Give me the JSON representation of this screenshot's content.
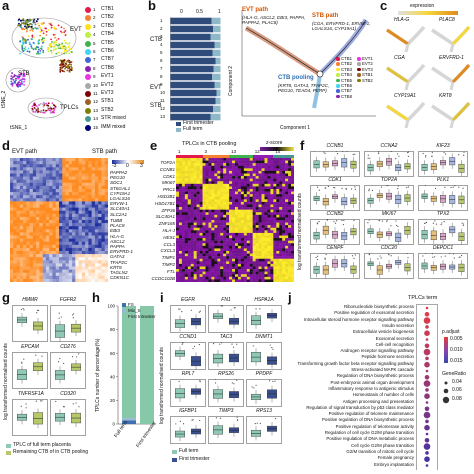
{
  "panels": {
    "a": "a",
    "b": "b",
    "c": "c",
    "d": "d",
    "e": "e",
    "f": "f",
    "g": "g",
    "h": "h",
    "i": "i",
    "j": "j"
  },
  "a": {
    "cluster_labels": [
      "EVT",
      "STB",
      "TPLCs"
    ],
    "xlabel": "tSNE_1",
    "ylabel": "tSNE_2",
    "legend": [
      {
        "id": "1",
        "name": "CTB1",
        "color": "#e6194b"
      },
      {
        "id": "2",
        "name": "CTB2",
        "color": "#f58231"
      },
      {
        "id": "3",
        "name": "CTB3",
        "color": "#ffe119"
      },
      {
        "id": "4",
        "name": "CTB4",
        "color": "#bfef45"
      },
      {
        "id": "5",
        "name": "CTB5",
        "color": "#3cb44b"
      },
      {
        "id": "6",
        "name": "CTB6",
        "color": "#42d4f4"
      },
      {
        "id": "7",
        "name": "CTB7",
        "color": "#4363d8"
      },
      {
        "id": "8",
        "name": "CTB8",
        "color": "#911eb4"
      },
      {
        "id": "9",
        "name": "EVT1",
        "color": "#f032e6"
      },
      {
        "id": "10",
        "name": "EVT2",
        "color": "#a9a9a9"
      },
      {
        "id": "11",
        "name": "EVT3",
        "color": "#800000"
      },
      {
        "id": "12",
        "name": "STB1",
        "color": "#9a6324"
      },
      {
        "id": "13",
        "name": "STB2",
        "color": "#808000"
      },
      {
        "id": "14",
        "name": "STR mixed",
        "color": "#469990"
      },
      {
        "id": "15",
        "name": "IMM mixed",
        "color": "#000075"
      }
    ]
  },
  "b": {
    "group_labels": [
      "CTB",
      "EVT",
      "STB"
    ],
    "tick_labels": [
      "0",
      "0.5",
      "1"
    ],
    "legend": [
      "First trimester",
      "Full term"
    ],
    "colors": {
      "first": "#2f4b7c",
      "full": "#8fb8c9"
    },
    "chart_data": {
      "type": "bar",
      "categories": [
        "1",
        "2",
        "3",
        "4",
        "5",
        "6",
        "7",
        "8",
        "9",
        "10",
        "11",
        "12",
        "13"
      ],
      "series": [
        {
          "name": "First trimester",
          "values": [
            0.82,
            0.85,
            0.8,
            0.88,
            0.84,
            0.9,
            0.86,
            0.83,
            0.88,
            0.92,
            0.9,
            0.85,
            0.8
          ]
        },
        {
          "name": "Full term",
          "values": [
            0.18,
            0.15,
            0.2,
            0.12,
            0.16,
            0.1,
            0.14,
            0.17,
            0.12,
            0.08,
            0.1,
            0.15,
            0.2
          ]
        }
      ],
      "xlim": [
        0,
        1
      ]
    }
  },
  "c": {
    "evt_title": "EVT path",
    "evt_genes": "(HLA-G, ASCL2, EBI3, PAPPA, PAPPA2, PLAC8)",
    "stb_title": "STB path",
    "stb_genes": "(CGA, ERVFRD-1, ERVW-1, LGALS16, CYP19A1)",
    "ctb_title": "CTB pooling",
    "ctb_genes": "(KRT8, GATA3, TFAP2C, PEG10, TEAD4, PERP)",
    "xlabel": "Component 1",
    "ylabel": "Component 2",
    "legend": [
      "CTB1",
      "CTB2",
      "CTB3",
      "CTB4",
      "CTB5",
      "CTB6",
      "CTB7",
      "CTB8",
      "EVT1",
      "EVT2",
      "EVT3",
      "STB1",
      "STB2"
    ],
    "expression_label": "expression",
    "genes": [
      "HLA-G",
      "PLAC8",
      "CGA",
      "ERVFRD-1",
      "CYP19A1",
      "KRT8"
    ]
  },
  "d": {
    "evt_label": "EVT path",
    "stb_label": "STB path",
    "scale": [
      "-3",
      "0",
      "3"
    ],
    "genes_top": [
      "PAPPA2",
      "PEG10",
      "SDC1",
      "ST6GAL1",
      "CYP19A1",
      "LGALS16",
      "ERVW-1",
      "SLC40A1",
      "SLC2A1"
    ],
    "genes_bottom": [
      "TUBB",
      "PLAC8",
      "EBI3",
      "HLA-G",
      "ASCL2",
      "PAPPA",
      "ERVFRD-1",
      "GATA3",
      "TFAP2C",
      "KRT8",
      "TAGLN2",
      "CDKN1C"
    ]
  },
  "e": {
    "title": "TPLCs in CTB pooling",
    "scale_title": "z-score",
    "cluster_ticks": [
      "1",
      "3",
      "13",
      "12",
      "14"
    ],
    "genes": [
      "TOP2A",
      "CCNB1",
      "CDK1",
      "MKI67",
      "PRC1",
      "HSD3B1",
      "HSD17B1",
      "ZFP36",
      "SLC40A1",
      "ZNF165",
      "HLA-J",
      "HES1",
      "CCL3",
      "CXCL3",
      "TIMP1",
      "TIMP2",
      "FTL",
      "CCDC102B"
    ]
  },
  "f": {
    "ylabel": "log transformed normalised counts",
    "genes": [
      "CCNB1",
      "CCNA2",
      "KIF23",
      "CDK1",
      "TOP2A",
      "PLK1",
      "CCNB2",
      "MKI67",
      "TPX2",
      "CENPF",
      "CDC20",
      "DEPDC1"
    ]
  },
  "g": {
    "ylabel": "log transformed normalised counts",
    "genes": [
      "HMMR",
      "FGFR2",
      "EPCAM",
      "CD276",
      "TNFRSF1A",
      "CD320"
    ],
    "legend": [
      "TPLC of full term placenta",
      "Remaining CTB of  in CTB pooling"
    ]
  },
  "h": {
    "ylabel": "TPLCs number of percentage(%)",
    "legend": [
      "FS",
      "Mix_S",
      "First trimester"
    ],
    "xticks": [
      "Full term",
      "First trimester"
    ],
    "yticks": [
      "0",
      "20",
      "40",
      "60",
      "80",
      "100"
    ],
    "colors": {
      "fs": "#3f6fb0",
      "mix": "#9bb8d3",
      "first": "#86c8a8"
    },
    "chart_data": {
      "type": "bar",
      "categories": [
        "Full term",
        "First trimester"
      ],
      "series": [
        {
          "name": "FS",
          "values": [
            3,
            0
          ]
        },
        {
          "name": "Mix_S",
          "values": [
            2,
            0
          ]
        },
        {
          "name": "First trimester",
          "values": [
            95,
            100
          ]
        }
      ],
      "ylim": [
        0,
        100
      ]
    }
  },
  "i": {
    "ylabel": "log transformed normalised counts",
    "genes": [
      "EGFR",
      "FN1",
      "HSPA1A",
      "CCND1",
      "TAC3",
      "DNMT1",
      "RPL7",
      "RPS26",
      "PPDPF",
      "IGFBP1",
      "TIMP3",
      "RPS13"
    ],
    "legend": [
      "Full term",
      "First trimester"
    ]
  },
  "j": {
    "title": "TPLCs term",
    "scale_title": "p.adjust",
    "scale_ticks": [
      "0.005",
      "0.010",
      "0.015"
    ],
    "size_title": "GeneRatio",
    "size_ticks": [
      "0.04",
      "0.06",
      "0.08"
    ],
    "terms": [
      "Ribonucleotide biosynthetic process",
      "Positive regulation of exosomal secretion",
      "Intracellular steroid hormone receptor signalling pathway",
      "Insulin secretion",
      "Extracellular vesicle biogenesis",
      "Exosomal secretion",
      "Cell-cell recognition",
      "Androgen receptor signalling pathway",
      "Peptide hormone secretion",
      "Transforming growth factor beta receptor signalling pathway",
      "Stress-activated MAPK cascade",
      "Regulation of DNA biosynthetic process",
      "Post-embryonic animal organ development",
      "Inflammatory response to antigenic stimulus",
      "Homeostasis of number of cells",
      "Antigen processing and presentation",
      "Regulation of signal transduction by p53 class mediator",
      "Positive regulation of telomere maintenance",
      "Positive regulation of DNA biosynthetic process",
      "Positive regulation of telomerase activity",
      "Regulation of cell cycle G2/M phase transition",
      "Positive regulation of DNA metabolic process",
      "Cell cycle G2/M phase transition",
      "G2/M transition of mitotic cell cycle",
      "Female pregnancy",
      "Embryo implantation"
    ]
  }
}
